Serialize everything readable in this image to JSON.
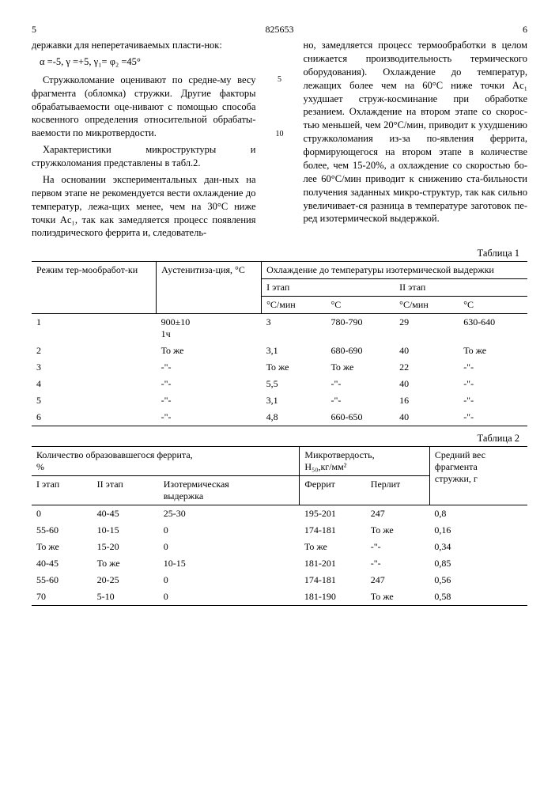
{
  "header": {
    "left_page": "5",
    "doc_num": "825653",
    "right_page": "6"
  },
  "text": {
    "l1": "державки для неперетачиваемых пласти-нок:",
    "formula": "α =-5,  γ =+5,  γ₁=  φ₂ =45°",
    "l2": "Стружколомание оценивают по средне-му весу фрагмента (обломка) стружки. Другие факторы обрабатываемости оце-нивают с помощью способа косвенного определения относительной обрабаты-ваемости по микротвердости.",
    "l3": "Характеристики микроструктуры и стружколомания представлены в табл.2.",
    "l4": "На основании экспериментальных дан-ных на первом этапе не рекомендуется вести охлаждение до температур, лежа-щих менее, чем на 30°С ниже точки Ac₁, так как замедляется процесс появления полиэдрического феррита и, следователь-",
    "r1": "но, замедляется процесс термообработки в целом снижается производительность термического оборудования). Охлаждение до температур, лежащих более чем на 60°С ниже точки Ac₁ ухудшает струж-косминание при обработке резанием. Охлаждение на втором этапе со скорос-тью меньшей, чем 20°С/мин, приводит к ухудшению стружколомания из-за по-явления феррита, формирующегося на втором этапе в количестве более, чем 15-20%, а охлаждение со скоростью бо-лее 60°С/мин приводит к снижению ста-бильности получения заданных микро-структур, так как сильно увеличивает-ся разница в температуре заготовок пе-ред изотермической выдержкой.",
    "m5": "5",
    "m10": "10"
  },
  "table1": {
    "caption": "Таблица 1",
    "h_mode": "Режим тер-мообработ-ки",
    "h_aust": "Аустенитиза-ция, °С",
    "h_cool": "Охлаждение до температуры изотермической выдержки",
    "h_s1": "I этап",
    "h_s2": "II этап",
    "h_cmin": "°С/мин",
    "h_c": "°С",
    "rows": [
      {
        "n": "1",
        "a": "900±10\n1ч",
        "c1": "3",
        "t1": "780-790",
        "c2": "29",
        "t2": "630-640"
      },
      {
        "n": "2",
        "a": "То же",
        "c1": "3,1",
        "t1": "680-690",
        "c2": "40",
        "t2": "То же"
      },
      {
        "n": "3",
        "a": "-\"-",
        "c1": "То же",
        "t1": "То же",
        "c2": "22",
        "t2": "-\"-"
      },
      {
        "n": "4",
        "a": "-\"-",
        "c1": "5,5",
        "t1": "-\"-",
        "c2": "40",
        "t2": "-\"-"
      },
      {
        "n": "5",
        "a": "-\"-",
        "c1": "3,1",
        "t1": "-\"-",
        "c2": "16",
        "t2": "-\"-"
      },
      {
        "n": "6",
        "a": "-\"-",
        "c1": "4,8",
        "t1": "660-650",
        "c2": "40",
        "t2": "-\"-"
      }
    ]
  },
  "table2": {
    "caption": "Таблица 2",
    "h_ferrite": "Количество образовавшегося феррита,\n%",
    "h_micro": "Микротвердость,\nH₅₀,кг/мм²",
    "h_weight": "Средний вес\nфрагмента\nстружки, г",
    "h_s1": "I этап",
    "h_s2": "II этап",
    "h_iso": "Изотермическая\nвыдержка",
    "h_fer": "Феррит",
    "h_per": "Перлит",
    "rows": [
      {
        "s1": "0",
        "s2": "40-45",
        "iso": "25-30",
        "f": "195-201",
        "p": "247",
        "w": "0,8"
      },
      {
        "s1": "55-60",
        "s2": "10-15",
        "iso": "0",
        "f": "174-181",
        "p": "То же",
        "w": "0,16"
      },
      {
        "s1": "То же",
        "s2": "15-20",
        "iso": "0",
        "f": "То же",
        "p": "-\"-",
        "w": "0,34"
      },
      {
        "s1": "40-45",
        "s2": "То же",
        "iso": "10-15",
        "f": "181-201",
        "p": "-\"-",
        "w": "0,85"
      },
      {
        "s1": "55-60",
        "s2": "20-25",
        "iso": "0",
        "f": "174-181",
        "p": "247",
        "w": "0,56"
      },
      {
        "s1": "70",
        "s2": "5-10",
        "iso": "0",
        "f": "181-190",
        "p": "То же",
        "w": "0,58"
      }
    ]
  }
}
